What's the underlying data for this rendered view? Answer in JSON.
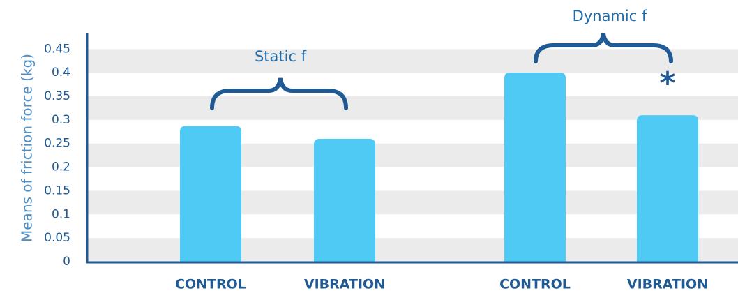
{
  "chart_data": {
    "type": "bar",
    "y_label": "Means of friction force (kg)",
    "categories": [
      "CONTROL",
      "VIBRATION",
      "CONTROL",
      "VIBRATION"
    ],
    "values": [
      0.287,
      0.26,
      0.4,
      0.31
    ],
    "color": "#4fcaf5",
    "ylim": [
      0,
      0.48
    ],
    "yticks": [
      0,
      0.05,
      0.1,
      0.15,
      0.2,
      0.25,
      0.3,
      0.35,
      0.4,
      0.45
    ],
    "grid": true,
    "annotations": [
      "Static f",
      "Dynamic f",
      "*"
    ]
  }
}
